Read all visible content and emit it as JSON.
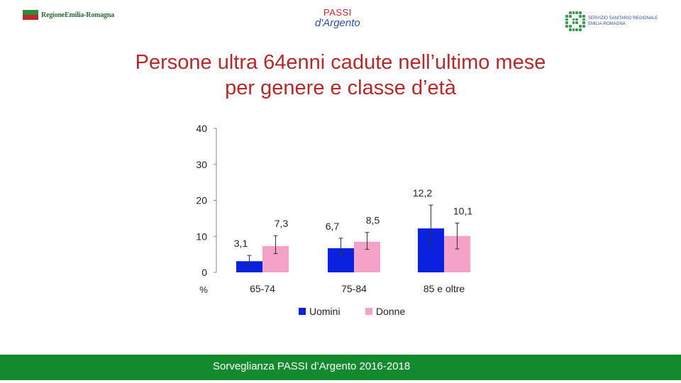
{
  "header": {
    "left_logo_text": "RegioneEmilia-Romagna",
    "center_logo": {
      "line1": "PASSI",
      "line2": "d'Argento",
      "line3": ""
    },
    "right_logo_text": [
      "SERVIZIO SANITARIO REGIONALE",
      "EMILIA-ROMAGNA"
    ]
  },
  "title": {
    "line1": "Persone ultra 64enni cadute nell’ultimo mese",
    "line2": "per genere e classe d’età"
  },
  "colors": {
    "title": "#b22a2a",
    "uomini": "#0a22e0",
    "donne": "#f4a2c8",
    "footer": "#138a2e"
  },
  "chart_data": {
    "type": "bar",
    "categories": [
      "65-74",
      "75-84",
      "85 e oltre"
    ],
    "series": [
      {
        "name": "Uomini",
        "values": [
          3.1,
          6.7,
          12.2
        ],
        "value_labels": [
          "3,1",
          "6,7",
          "12,2"
        ],
        "error_low": [
          2.0,
          4.8,
          7.7
        ],
        "error_high": [
          4.7,
          9.5,
          18.7
        ]
      },
      {
        "name": "Donne",
        "values": [
          7.3,
          8.5,
          10.1
        ],
        "value_labels": [
          "7,3",
          "8,5",
          "10,1"
        ],
        "error_low": [
          5.2,
          6.4,
          6.5
        ],
        "error_high": [
          10.2,
          11.1,
          13.7
        ]
      }
    ],
    "ylabel": "%",
    "ylim": [
      0,
      40
    ],
    "yticks": [
      0,
      10,
      20,
      30,
      40
    ],
    "ytick_labels": [
      "0",
      "10",
      "20",
      "30",
      "40"
    ],
    "grid": false,
    "legend": "bottom"
  },
  "footer": {
    "text": "Sorveglianza PASSI d’Argento 2016-2018"
  }
}
